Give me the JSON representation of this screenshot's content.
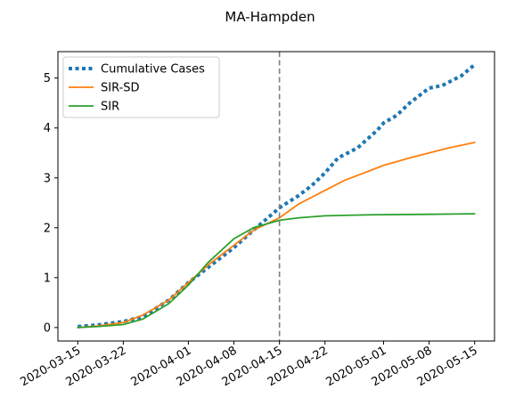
{
  "chart_data": {
    "type": "line",
    "title": "MA-Hampden",
    "xlabel": "",
    "ylabel": "",
    "x_type": "date",
    "xlim": [
      "2020-03-15",
      "2020-05-15"
    ],
    "ylim": [
      -0.27,
      5.53
    ],
    "x_ticks": [
      "2020-03-15",
      "2020-03-22",
      "2020-04-01",
      "2020-04-08",
      "2020-04-15",
      "2020-04-22",
      "2020-05-01",
      "2020-05-08",
      "2020-05-15"
    ],
    "y_ticks": [
      0,
      1,
      2,
      3,
      4,
      5
    ],
    "grid": false,
    "legend_position": "top-left",
    "vline": {
      "x": "2020-04-15",
      "color": "#7f7f7f",
      "style": "dashed"
    },
    "series": [
      {
        "name": "Cumulative Cases",
        "color": "#1f77b4",
        "style": "dotted",
        "points": [
          [
            "2020-03-15",
            0.02
          ],
          [
            "2020-03-18",
            0.05
          ],
          [
            "2020-03-22",
            0.12
          ],
          [
            "2020-03-25",
            0.22
          ],
          [
            "2020-03-29",
            0.55
          ],
          [
            "2020-04-01",
            0.9
          ],
          [
            "2020-04-04",
            1.2
          ],
          [
            "2020-04-08",
            1.6
          ],
          [
            "2020-04-11",
            1.95
          ],
          [
            "2020-04-15",
            2.4
          ],
          [
            "2020-04-18",
            2.65
          ],
          [
            "2020-04-20",
            2.85
          ],
          [
            "2020-04-22",
            3.1
          ],
          [
            "2020-04-24",
            3.4
          ],
          [
            "2020-04-27",
            3.6
          ],
          [
            "2020-04-30",
            3.95
          ],
          [
            "2020-05-01",
            4.1
          ],
          [
            "2020-05-03",
            4.25
          ],
          [
            "2020-05-05",
            4.5
          ],
          [
            "2020-05-08",
            4.8
          ],
          [
            "2020-05-10",
            4.85
          ],
          [
            "2020-05-13",
            5.05
          ],
          [
            "2020-05-15",
            5.27
          ]
        ]
      },
      {
        "name": "SIR-SD",
        "color": "#ff7f0e",
        "style": "solid",
        "points": [
          [
            "2020-03-15",
            0.0
          ],
          [
            "2020-03-18",
            0.03
          ],
          [
            "2020-03-22",
            0.1
          ],
          [
            "2020-03-25",
            0.25
          ],
          [
            "2020-03-29",
            0.55
          ],
          [
            "2020-04-01",
            0.9
          ],
          [
            "2020-04-04",
            1.25
          ],
          [
            "2020-04-08",
            1.65
          ],
          [
            "2020-04-11",
            1.95
          ],
          [
            "2020-04-15",
            2.2
          ],
          [
            "2020-04-18",
            2.48
          ],
          [
            "2020-04-22",
            2.75
          ],
          [
            "2020-04-25",
            2.95
          ],
          [
            "2020-04-29",
            3.15
          ],
          [
            "2020-05-01",
            3.25
          ],
          [
            "2020-05-05",
            3.4
          ],
          [
            "2020-05-08",
            3.5
          ],
          [
            "2020-05-11",
            3.6
          ],
          [
            "2020-05-15",
            3.71
          ]
        ]
      },
      {
        "name": "SIR",
        "color": "#2ca02c",
        "style": "solid",
        "points": [
          [
            "2020-03-15",
            0.0
          ],
          [
            "2020-03-18",
            0.02
          ],
          [
            "2020-03-22",
            0.06
          ],
          [
            "2020-03-25",
            0.17
          ],
          [
            "2020-03-29",
            0.48
          ],
          [
            "2020-04-01",
            0.85
          ],
          [
            "2020-04-04",
            1.3
          ],
          [
            "2020-04-08",
            1.78
          ],
          [
            "2020-04-11",
            2.0
          ],
          [
            "2020-04-15",
            2.15
          ],
          [
            "2020-04-18",
            2.2
          ],
          [
            "2020-04-22",
            2.24
          ],
          [
            "2020-04-29",
            2.26
          ],
          [
            "2020-05-08",
            2.27
          ],
          [
            "2020-05-15",
            2.28
          ]
        ]
      }
    ]
  }
}
